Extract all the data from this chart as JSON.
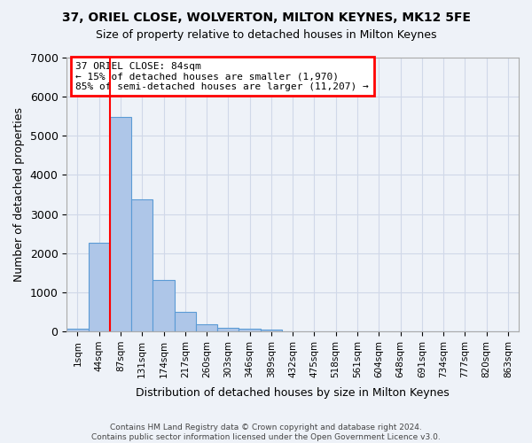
{
  "title": "37, ORIEL CLOSE, WOLVERTON, MILTON KEYNES, MK12 5FE",
  "subtitle": "Size of property relative to detached houses in Milton Keynes",
  "xlabel": "Distribution of detached houses by size in Milton Keynes",
  "ylabel": "Number of detached properties",
  "footer_line1": "Contains HM Land Registry data © Crown copyright and database right 2024.",
  "footer_line2": "Contains public sector information licensed under the Open Government Licence v3.0.",
  "bin_labels": [
    "1sqm",
    "44sqm",
    "87sqm",
    "131sqm",
    "174sqm",
    "217sqm",
    "260sqm",
    "303sqm",
    "346sqm",
    "389sqm",
    "432sqm",
    "475sqm",
    "518sqm",
    "561sqm",
    "604sqm",
    "648sqm",
    "691sqm",
    "734sqm",
    "777sqm",
    "820sqm",
    "863sqm"
  ],
  "bar_values": [
    80,
    2270,
    5480,
    3380,
    1310,
    500,
    185,
    90,
    65,
    50,
    0,
    0,
    0,
    0,
    0,
    0,
    0,
    0,
    0,
    0,
    0
  ],
  "bar_color": "#aec6e8",
  "bar_edge_color": "#5b9bd5",
  "grid_color": "#d0d8e8",
  "background_color": "#eef2f8",
  "red_line_x": 2.0,
  "annotation_text": "37 ORIEL CLOSE: 84sqm\n← 15% of detached houses are smaller (1,970)\n85% of semi-detached houses are larger (11,207) →",
  "annotation_box_color": "white",
  "annotation_box_edge_color": "red",
  "ylim": [
    0,
    7000
  ],
  "yticks": [
    0,
    1000,
    2000,
    3000,
    4000,
    5000,
    6000,
    7000
  ]
}
